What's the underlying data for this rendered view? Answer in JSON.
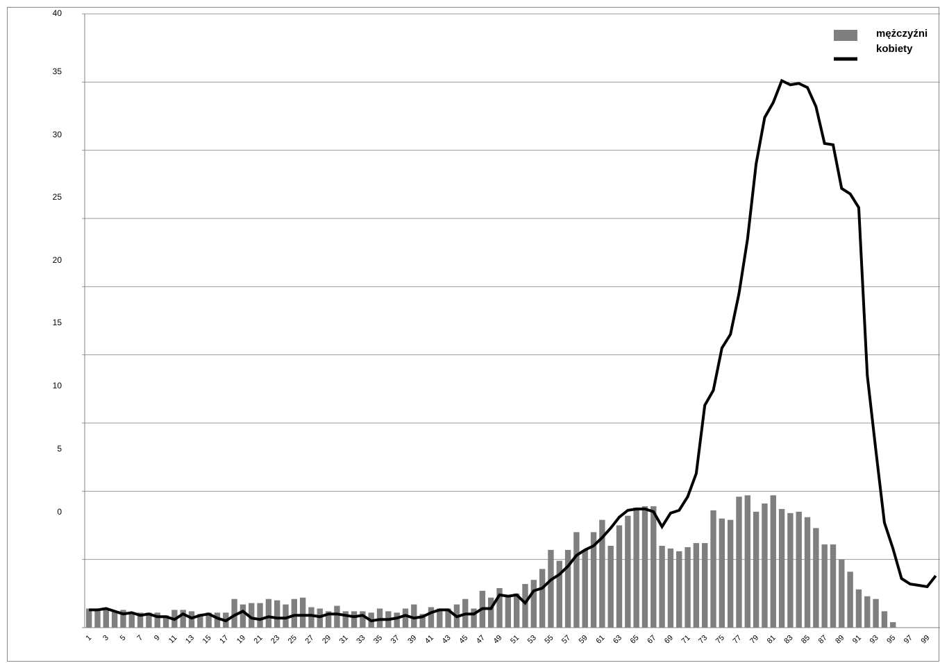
{
  "chart_data": {
    "type": "bar",
    "title": "",
    "xlabel": "",
    "ylabel": "",
    "ylim": [
      -5,
      40
    ],
    "y_tick_labels": [
      "0",
      "5",
      "10",
      "15",
      "20",
      "25",
      "30",
      "35",
      "40"
    ],
    "grid": "horizontal",
    "legend_position": "top-right",
    "colors": {
      "bars": "#7f7f7f",
      "line": "#000000",
      "grid": "#9a9a9a",
      "axis": "#808080"
    },
    "categories": [
      1,
      2,
      3,
      4,
      5,
      6,
      7,
      8,
      9,
      10,
      11,
      12,
      13,
      14,
      15,
      16,
      17,
      18,
      19,
      20,
      21,
      22,
      23,
      24,
      25,
      26,
      27,
      28,
      29,
      30,
      31,
      32,
      33,
      34,
      35,
      36,
      37,
      38,
      39,
      40,
      41,
      42,
      43,
      44,
      45,
      46,
      47,
      48,
      49,
      50,
      51,
      52,
      53,
      54,
      55,
      56,
      57,
      58,
      59,
      60,
      61,
      62,
      63,
      64,
      65,
      66,
      67,
      68,
      69,
      70,
      71,
      72,
      73,
      74,
      75,
      76,
      77,
      78,
      79,
      80,
      81,
      82,
      83,
      84,
      85,
      86,
      87,
      88,
      89,
      90,
      91,
      92,
      93,
      94,
      95,
      96,
      97,
      98,
      99,
      100
    ],
    "x_tick_labels": [
      "1",
      "3",
      "5",
      "7",
      "9",
      "11",
      "13",
      "15",
      "17",
      "19",
      "21",
      "23",
      "25",
      "27",
      "29",
      "31",
      "33",
      "35",
      "37",
      "39",
      "41",
      "43",
      "45",
      "47",
      "49",
      "51",
      "53",
      "55",
      "57",
      "59",
      "61",
      "63",
      "65",
      "67",
      "69",
      "71",
      "73",
      "75",
      "77",
      "79",
      "81",
      "83",
      "85",
      "87",
      "89",
      "91",
      "93",
      "95",
      "97",
      "99"
    ],
    "series": [
      {
        "name": "mężczyźni",
        "type": "bar",
        "values": [
          -3.6,
          -3.6,
          -3.6,
          -3.8,
          -3.7,
          -3.9,
          -3.9,
          -3.9,
          -3.9,
          -4.1,
          -3.7,
          -3.7,
          -3.8,
          -4.0,
          -3.9,
          -3.9,
          -3.9,
          -2.9,
          -3.3,
          -3.2,
          -3.2,
          -2.9,
          -3.0,
          -3.3,
          -2.9,
          -2.8,
          -3.5,
          -3.6,
          -3.8,
          -3.4,
          -3.8,
          -3.8,
          -3.8,
          -3.9,
          -3.6,
          -3.8,
          -3.9,
          -3.6,
          -3.3,
          -4.0,
          -3.5,
          -3.6,
          -3.6,
          -3.3,
          -2.9,
          -3.6,
          -2.3,
          -2.8,
          -2.1,
          -2.6,
          -2.5,
          -1.8,
          -1.5,
          -0.7,
          0.7,
          -0.1,
          0.7,
          2.0,
          0.7,
          2.0,
          2.9,
          1.0,
          2.5,
          3.2,
          3.8,
          3.9,
          3.9,
          1.0,
          0.8,
          0.6,
          0.9,
          1.2,
          1.2,
          3.6,
          3.0,
          2.9,
          4.6,
          4.7,
          3.5,
          4.1,
          4.7,
          3.7,
          3.4,
          3.5,
          3.1,
          2.3,
          1.1,
          1.1,
          0.0,
          -0.9,
          -2.2,
          -2.7,
          -2.9,
          -3.8,
          -4.6,
          -5.2,
          -5.3,
          -5.3,
          -5.2,
          -5.1
        ]
      },
      {
        "name": "kobiety",
        "type": "line",
        "values": [
          -3.7,
          -3.7,
          -3.6,
          -3.8,
          -4.0,
          -3.9,
          -4.1,
          -4.0,
          -4.2,
          -4.2,
          -4.4,
          -4.0,
          -4.3,
          -4.1,
          -4.0,
          -4.3,
          -4.5,
          -4.1,
          -3.8,
          -4.3,
          -4.4,
          -4.2,
          -4.3,
          -4.3,
          -4.1,
          -4.1,
          -4.1,
          -4.2,
          -4.0,
          -4.0,
          -4.1,
          -4.2,
          -4.1,
          -4.5,
          -4.4,
          -4.4,
          -4.3,
          -4.1,
          -4.3,
          -4.2,
          -3.9,
          -3.7,
          -3.7,
          -4.2,
          -4.0,
          -4.0,
          -3.6,
          -3.6,
          -2.6,
          -2.7,
          -2.6,
          -3.2,
          -2.3,
          -2.1,
          -1.5,
          -1.1,
          -0.5,
          0.3,
          0.7,
          1.0,
          1.6,
          2.3,
          3.1,
          3.6,
          3.7,
          3.7,
          3.5,
          2.4,
          3.4,
          3.6,
          4.6,
          6.3,
          11.3,
          12.4,
          15.5,
          16.5,
          19.5,
          23.5,
          29.0,
          32.4,
          33.5,
          35.1,
          34.8,
          34.9,
          34.6,
          33.2,
          30.5,
          30.4,
          27.2,
          26.8,
          25.8,
          13.5,
          8.0,
          2.7,
          0.8,
          -1.4,
          -1.8,
          -1.9,
          -2.0,
          -1.2
        ]
      }
    ]
  }
}
